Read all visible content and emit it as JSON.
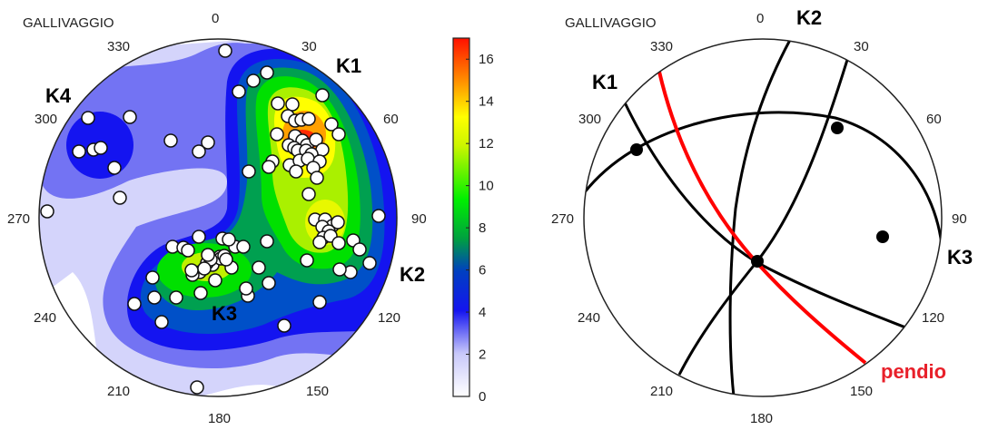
{
  "chart_data": [
    {
      "type": "heatmap",
      "subtype": "stereonet-pole-density",
      "title": "GALLIVAGGIO",
      "azimuth_ticks": [
        "0",
        "30",
        "60",
        "90",
        "120",
        "150",
        "180",
        "210",
        "240",
        "270",
        "300",
        "330"
      ],
      "set_labels": [
        "K1",
        "K2",
        "K3",
        "K4"
      ],
      "colorbar": {
        "min": 0,
        "max": 17,
        "ticks": [
          "0",
          "2",
          "4",
          "6",
          "8",
          "10",
          "12",
          "14",
          "16"
        ],
        "colors": [
          "#ffffff",
          "#d4d4fb",
          "#7070f4",
          "#1010f0",
          "#0050c8",
          "#00a050",
          "#00e000",
          "#a0f000",
          "#ffff00",
          "#ffa000",
          "#ff2000"
        ]
      },
      "density_levels": [
        0,
        2,
        3,
        4,
        5,
        6,
        7,
        8,
        10,
        12,
        14,
        16
      ],
      "poles_trend_plunge_approx": [
        {
          "set": "K1",
          "trend": 25,
          "plunge": 48
        },
        {
          "set": "K2",
          "trend": 98,
          "plunge": 45
        },
        {
          "set": "K3",
          "trend": 210,
          "plunge": 55
        },
        {
          "set": "K4",
          "trend": 302,
          "plunge": 30
        }
      ],
      "points_count_approx": 110
    },
    {
      "type": "line",
      "subtype": "stereonet-great-circles",
      "title": "GALLIVAGGIO",
      "azimuth_ticks": [
        "0",
        "30",
        "60",
        "90",
        "120",
        "150",
        "180",
        "210",
        "240",
        "270",
        "300",
        "330"
      ],
      "great_circles": [
        {
          "name": "K1",
          "color": "#000000"
        },
        {
          "name": "K2",
          "color": "#000000"
        },
        {
          "name": "K3",
          "color": "#000000"
        },
        {
          "name": "K4",
          "color": "#000000"
        },
        {
          "name": "pendio",
          "color": "#ff0000"
        }
      ],
      "labels": {
        "k1": "K1",
        "k2": "K2",
        "k3": "K3",
        "slope": "pendio"
      },
      "intersections_count": 4
    }
  ],
  "left": {
    "title": "GALLIVAGGIO",
    "ticks": {
      "t0": "0",
      "t30": "30",
      "t60": "60",
      "t90": "90",
      "t120": "120",
      "t150": "150",
      "t180": "180",
      "t210": "210",
      "t240": "240",
      "t270": "270",
      "t300": "300",
      "t330": "330"
    },
    "labels": {
      "k1": "K1",
      "k2": "K2",
      "k3": "K3",
      "k4": "K4"
    },
    "colorbar_ticks": [
      "0",
      "2",
      "4",
      "6",
      "8",
      "10",
      "12",
      "14",
      "16"
    ]
  },
  "right": {
    "title": "GALLIVAGGIO",
    "ticks": {
      "t0": "0",
      "t30": "30",
      "t60": "60",
      "t90": "90",
      "t120": "120",
      "t150": "150",
      "t180": "180",
      "t210": "210",
      "t240": "240",
      "t270": "270",
      "t300": "300",
      "t330": "330"
    },
    "labels": {
      "k1": "K1",
      "k2": "K2",
      "k3": "K3",
      "slope": "pendio"
    }
  }
}
